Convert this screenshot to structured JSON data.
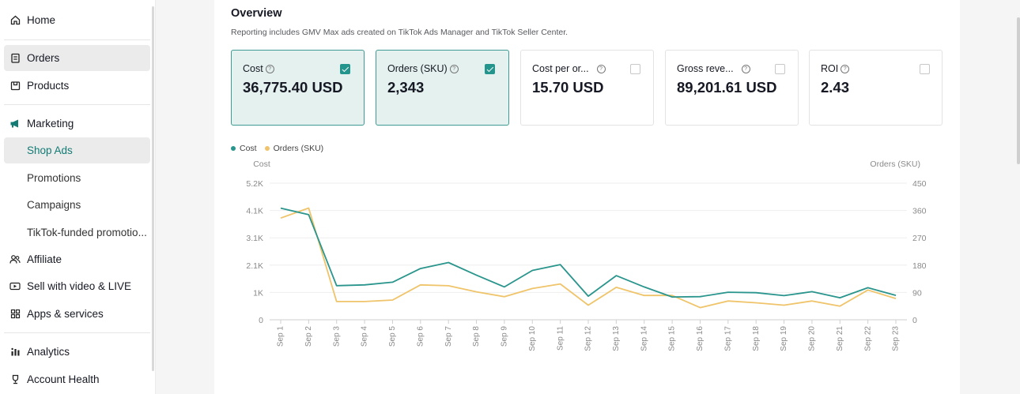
{
  "sidebar": {
    "items": [
      {
        "label": "Home",
        "icon": "home-icon"
      },
      {
        "label": "Orders",
        "icon": "orders-icon"
      },
      {
        "label": "Products",
        "icon": "products-icon"
      },
      {
        "label": "Marketing",
        "icon": "megaphone-icon"
      },
      {
        "label": "Shop Ads"
      },
      {
        "label": "Promotions"
      },
      {
        "label": "Campaigns"
      },
      {
        "label": "TikTok-funded promotio..."
      },
      {
        "label": "Affiliate",
        "icon": "affiliate-icon"
      },
      {
        "label": "Sell with video & LIVE",
        "icon": "video-icon"
      },
      {
        "label": "Apps & services",
        "icon": "apps-icon"
      },
      {
        "label": "Analytics",
        "icon": "analytics-icon"
      },
      {
        "label": "Account Health",
        "icon": "trophy-icon"
      }
    ]
  },
  "overview": {
    "title": "Overview",
    "subtitle": "Reporting includes GMV Max ads created on TikTok Ads Manager and TikTok Seller Center."
  },
  "metrics": [
    {
      "label": "Cost",
      "value": "36,775.40 USD",
      "checked": true
    },
    {
      "label": "Orders (SKU)",
      "value": "2,343",
      "checked": true
    },
    {
      "label": "Cost per or...",
      "value": "15.70 USD",
      "checked": false
    },
    {
      "label": "Gross reve...",
      "value": "89,201.61 USD",
      "checked": false
    },
    {
      "label": "ROI",
      "value": "2.43",
      "checked": false
    }
  ],
  "colors": {
    "accent": "#23958d",
    "cost": "#2a958c",
    "orders": "#efc46a"
  },
  "chart_data": {
    "type": "line",
    "legend": [
      "Cost",
      "Orders (SKU)"
    ],
    "legend_position": "top-left",
    "ylabel_left": "Cost",
    "ylabel_right": "Orders (SKU)",
    "y_left_ticks": [
      "0",
      "1K",
      "2.1K",
      "3.1K",
      "4.1K",
      "5.2K"
    ],
    "y_right_ticks": [
      "0",
      "90",
      "180",
      "270",
      "360",
      "450"
    ],
    "ylim_left": [
      0,
      5200
    ],
    "ylim_right": [
      0,
      450
    ],
    "grid": true,
    "x": [
      "Sep 1",
      "Sep 2",
      "Sep 3",
      "Sep 4",
      "Sep 5",
      "Sep 6",
      "Sep 7",
      "Sep 8",
      "Sep 9",
      "Sep 10",
      "Sep 11",
      "Sep 12",
      "Sep 13",
      "Sep 14",
      "Sep 15",
      "Sep 16",
      "Sep 17",
      "Sep 18",
      "Sep 19",
      "Sep 20",
      "Sep 21",
      "Sep 22",
      "Sep 23"
    ],
    "series": [
      {
        "name": "Cost",
        "axis": "left",
        "values": [
          4250,
          4000,
          1300,
          1330,
          1430,
          1950,
          2180,
          1700,
          1250,
          1880,
          2100,
          900,
          1680,
          1250,
          870,
          880,
          1050,
          1030,
          920,
          1070,
          840,
          1220,
          930
        ]
      },
      {
        "name": "Orders (SKU)",
        "axis": "right",
        "values": [
          335,
          368,
          60,
          60,
          65,
          115,
          112,
          92,
          76,
          103,
          118,
          48,
          107,
          80,
          80,
          40,
          62,
          56,
          48,
          62,
          45,
          98,
          70
        ]
      }
    ]
  }
}
